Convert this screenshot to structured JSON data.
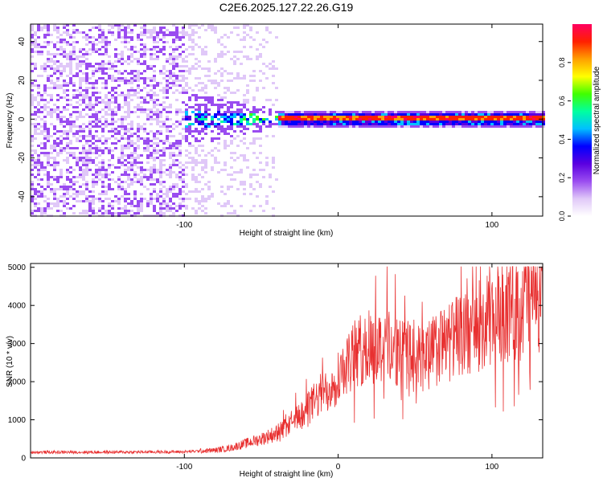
{
  "title": "C2E6.2025.127.22.26.G19",
  "chart_data": [
    {
      "type": "heatmap",
      "xlabel": "Height of straight line (km)",
      "ylabel": "Frequency (Hz)",
      "xlim": [
        -200,
        133
      ],
      "ylim": [
        -50,
        49
      ],
      "x_ticks": [
        -100,
        0,
        100
      ],
      "x_tick_labels": [
        "-100",
        "",
        "100"
      ],
      "y_ticks": [
        -40,
        -20,
        0,
        20,
        40
      ],
      "y_tick_labels": [
        "-40",
        "-20",
        "0",
        "20",
        "40"
      ],
      "colorbar": {
        "label": "Normalized spectral amplitude",
        "range": [
          0,
          1
        ],
        "ticks": [
          0.0,
          0.2,
          0.4,
          0.6,
          0.8
        ],
        "tick_labels": [
          "0.0",
          "0.2",
          "0.4",
          "0.6",
          "0.8"
        ],
        "colormap": [
          "#ffffff",
          "#e0c8f8",
          "#9a4cf0",
          "#5a00e0",
          "#0000ff",
          "#00c0ff",
          "#00ffa0",
          "#40ff00",
          "#ffff00",
          "#ffa000",
          "#ff2000",
          "#ff0060"
        ]
      },
      "features": {
        "noise_region": [
          -200,
          -100
        ],
        "transition_region": [
          -100,
          -40
        ],
        "carrier_frequency_hz": 0,
        "carrier_start": -60
      },
      "grid": false
    },
    {
      "type": "line",
      "xlabel": "Height of straight line (km)",
      "ylabel": "SNR (10 * v/v)",
      "xlim": [
        -200,
        133
      ],
      "ylim": [
        0,
        5100
      ],
      "x_ticks": [
        -100,
        0,
        100
      ],
      "x_tick_labels": [
        "-100",
        "0",
        "100"
      ],
      "y_ticks": [
        0,
        1000,
        2000,
        3000,
        4000,
        5000
      ],
      "y_tick_labels": [
        "0",
        "1000",
        "2000",
        "3000",
        "4000",
        "5000"
      ],
      "color": "#e83030",
      "envelope": {
        "x": [
          -200,
          -150,
          -100,
          -80,
          -70,
          -60,
          -50,
          -40,
          -30,
          -20,
          -10,
          0,
          10,
          20,
          30,
          40,
          50,
          60,
          70,
          80,
          90,
          100,
          110,
          120,
          133
        ],
        "y": [
          150,
          150,
          160,
          200,
          260,
          380,
          500,
          650,
          900,
          1300,
          1700,
          2150,
          2700,
          2900,
          3000,
          2800,
          2600,
          2750,
          3000,
          3200,
          3450,
          3600,
          3850,
          4050,
          4250
        ]
      },
      "grid": false
    }
  ]
}
